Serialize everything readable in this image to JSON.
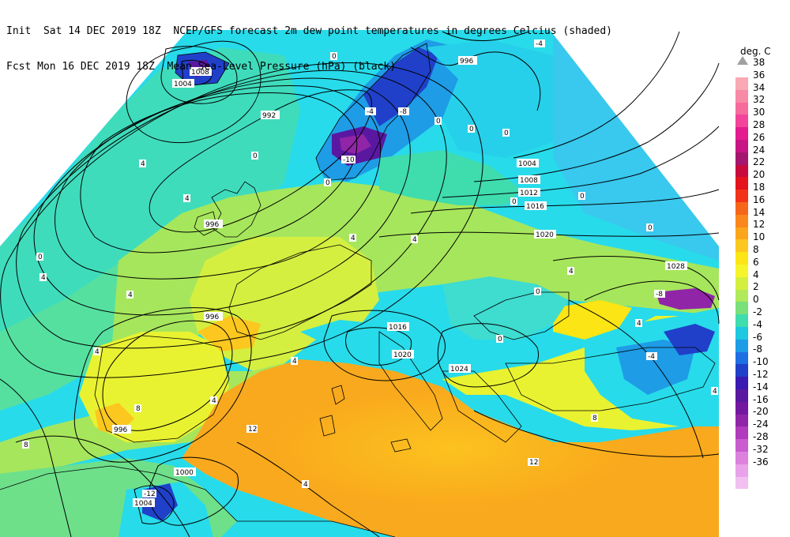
{
  "header": {
    "line1": "Init  Sat 14 DEC 2019 18Z  NCEP/GFS forecast 2m dew point temperatures in degrees Celcius (shaded)",
    "line2": "Fcst Mon 16 DEC 2019 18Z  Mean Sea-Level Pressure (hPa) (black)"
  },
  "legend": {
    "unit": "deg. C",
    "levels": [
      "38",
      "36",
      "34",
      "32",
      "30",
      "28",
      "26",
      "24",
      "22",
      "20",
      "18",
      "16",
      "14",
      "12",
      "10",
      "8",
      "6",
      "4",
      "2",
      "0",
      "-2",
      "-4",
      "-6",
      "-8",
      "-10",
      "-12",
      "-14",
      "-16",
      "-20",
      "-24",
      "-28",
      "-32",
      "-36"
    ],
    "colors": [
      "#f9a9b4",
      "#f78aa6",
      "#f66b9c",
      "#f2449a",
      "#e41c8f",
      "#c81585",
      "#a5166e",
      "#c80a3c",
      "#e4131c",
      "#f2331a",
      "#f6661a",
      "#f9871e",
      "#fba51d",
      "#fcc71e",
      "#fbe514",
      "#f6f52c",
      "#d4ef40",
      "#b0e95a",
      "#7ae07a",
      "#3fdcae",
      "#1dc8e0",
      "#1e9ce6",
      "#1f6fe4",
      "#2040c9",
      "#3a1ab0",
      "#5a18a0",
      "#7518a0",
      "#9025a8",
      "#b13bbd",
      "#c95ccf",
      "#dc82de",
      "#e9a2ea",
      "#f2c0f0"
    ]
  },
  "isobars": {
    "labels": [
      "1008",
      "1004",
      "992",
      "996",
      "996",
      "996",
      "996",
      "1000",
      "1004",
      "996",
      "1004",
      "1008",
      "1012",
      "1016",
      "1020",
      "1028",
      "1028",
      "1016",
      "1020",
      "1024"
    ]
  },
  "dewpoint_labels": [
    "0",
    "0",
    "0",
    "0",
    "0",
    "0",
    "0",
    "0",
    "0",
    "0",
    "4",
    "4",
    "4",
    "4",
    "4",
    "4",
    "4",
    "4",
    "4",
    "4",
    "4",
    "4",
    "8",
    "8",
    "8",
    "12",
    "12",
    "-4",
    "-4",
    "-8",
    "-8",
    "-12",
    "-10",
    "-4",
    "0",
    "0",
    "4"
  ]
}
